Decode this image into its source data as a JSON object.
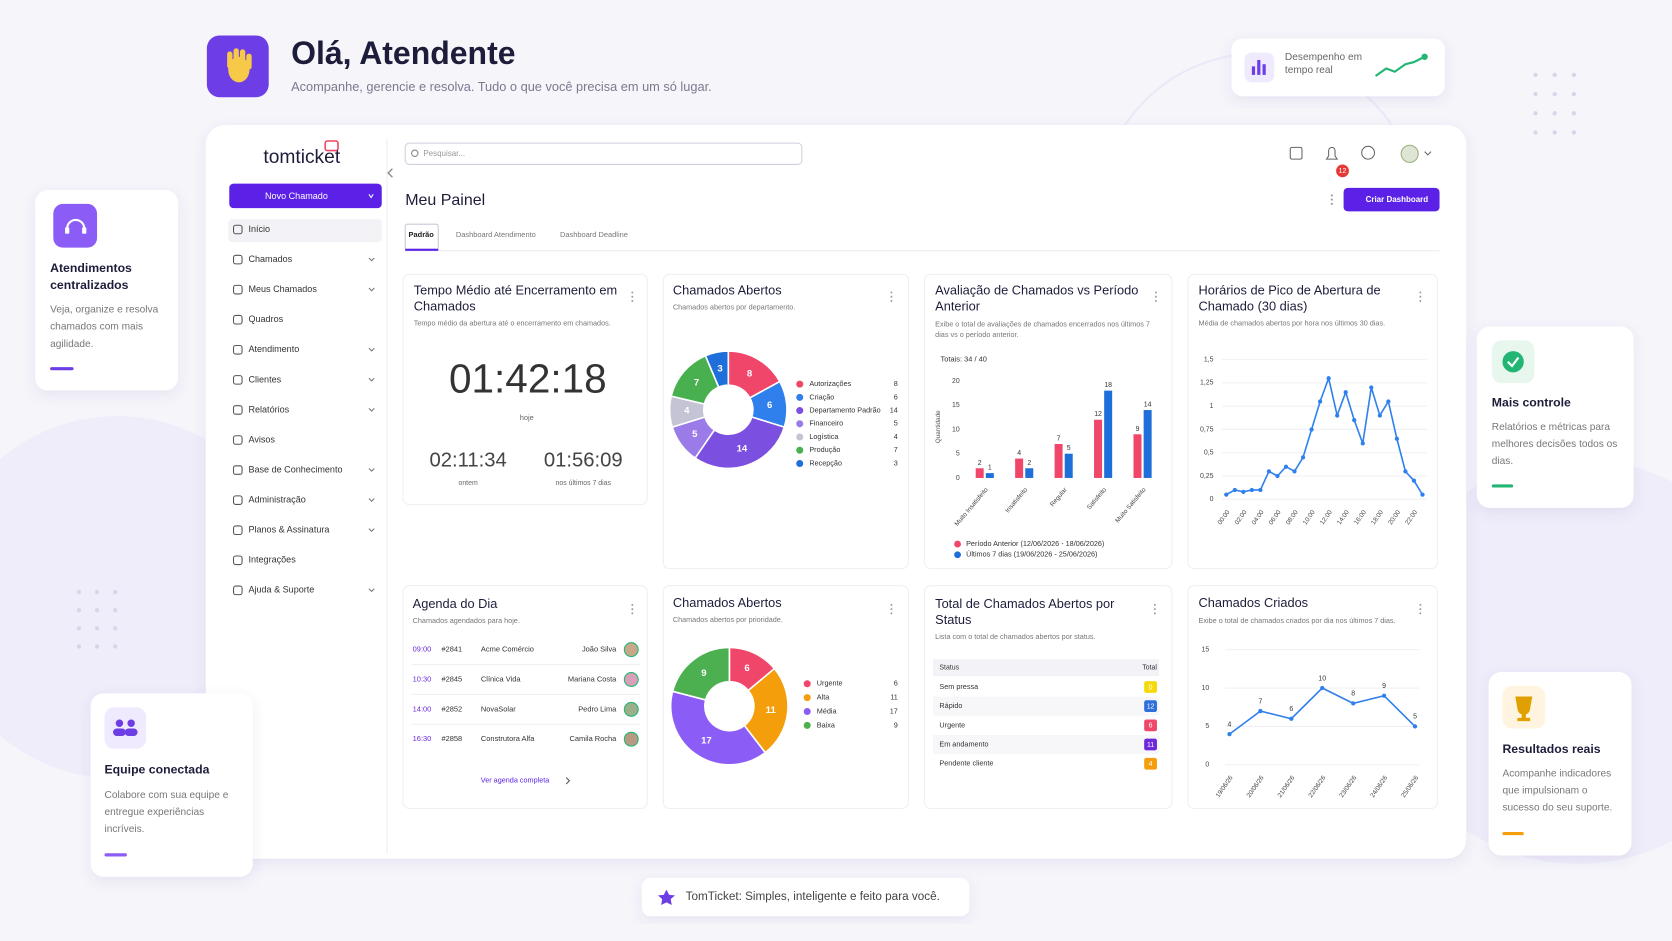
{
  "header": {
    "title": "Olá, Atendente",
    "subtitle": "Acompanhe, gerencie e resolva. Tudo o que você precisa em um só lugar."
  },
  "badge": {
    "text": "Desempenho em tempo real"
  },
  "side_cards": [
    {
      "title": "Atendimentos centralizados",
      "text": "Veja, organize e resolva chamados com mais agilidade."
    },
    {
      "title": "Equipe conectada",
      "text": "Colabore com sua equipe e entregue experiências incríveis."
    },
    {
      "title": "Mais controle",
      "text": "Relatórios e métricas para melhores decisões todos os dias."
    },
    {
      "title": "Resultados reais",
      "text": "Acompanhe indicadores que impulsionam o sucesso do seu suporte."
    }
  ],
  "footer": "TomTicket: Simples, inteligente e feito para você.",
  "app": {
    "logo": "tomticket",
    "new_button": "Novo Chamado",
    "search_placeholder": "Pesquisar...",
    "notifications": 12,
    "page_title": "Meu Painel",
    "create_dashboard": "Criar Dashboard",
    "tabs": [
      "Padrão",
      "Dashboard Atendimento",
      "Dashboard Deadline"
    ],
    "menu": [
      {
        "label": "Início",
        "expandable": false
      },
      {
        "label": "Chamados",
        "expandable": true
      },
      {
        "label": "Meus Chamados",
        "expandable": true
      },
      {
        "label": "Quadros",
        "expandable": false
      },
      {
        "label": "Atendimento",
        "expandable": true
      },
      {
        "label": "Clientes",
        "expandable": true
      },
      {
        "label": "Relatórios",
        "expandable": true
      },
      {
        "label": "Avisos",
        "expandable": false
      },
      {
        "label": "Base de Conhecimento",
        "expandable": true
      },
      {
        "label": "Administração",
        "expandable": true
      },
      {
        "label": "Planos & Assinatura",
        "expandable": true
      },
      {
        "label": "Integrações",
        "expandable": false
      },
      {
        "label": "Ajuda & Suporte",
        "expandable": true
      }
    ]
  },
  "widgets": {
    "avg_time": {
      "title": "Tempo Médio até Encerramento em Chamados",
      "subtitle": "Tempo médio da abertura até o encerramento em chamados.",
      "main": {
        "value": "01:42:18",
        "label": "hoje"
      },
      "others": [
        {
          "value": "02:11:34",
          "label": "ontem"
        },
        {
          "value": "01:56:09",
          "label": "nos últimos 7 dias"
        }
      ]
    },
    "agenda": {
      "title": "Agenda do Dia",
      "subtitle": "Chamados agendados para hoje.",
      "rows": [
        [
          "09:00",
          "#2841",
          "Acme Comércio",
          "João Silva"
        ],
        [
          "10:30",
          "#2845",
          "Clínica Vida",
          "Mariana Costa"
        ],
        [
          "14:00",
          "#2852",
          "NovaSolar",
          "Pedro Lima"
        ],
        [
          "16:30",
          "#2858",
          "Construtora Alfa",
          "Camila Rocha"
        ]
      ],
      "link": "Ver agenda completa"
    },
    "status": {
      "title": "Total de Chamados Abertos por Status",
      "subtitle": "Lista com o total de chamados abertos por status.",
      "headers": [
        "Status",
        "Total"
      ],
      "rows": [
        [
          "Sem pressa",
          0
        ],
        [
          "Rápido",
          12
        ],
        [
          "Urgente",
          6
        ],
        [
          "Em andamento",
          11
        ],
        [
          "Pendente cliente",
          4
        ]
      ],
      "colors": [
        "#f5d90a",
        "#2f6fdc",
        "#f0466a",
        "#6d28d9",
        "#f59e0b"
      ]
    }
  },
  "chart_data": [
    {
      "type": "pie",
      "title": "Chamados Abertos",
      "subtitle": "Chamados abertos por departamento.",
      "categories": [
        "Autorizações",
        "Criação",
        "Departamento Padrão",
        "Financeiro",
        "Logística",
        "Produção",
        "Recepção"
      ],
      "values": [
        8,
        6,
        14,
        5,
        4,
        7,
        3
      ],
      "colors": [
        "#f0466a",
        "#2f80ed",
        "#7b4fe0",
        "#9b7be8",
        "#c4c4d4",
        "#49b04f",
        "#1e6fd9"
      ],
      "data_labels": true,
      "legend": "right"
    },
    {
      "type": "bar",
      "title": "Avaliação de Chamados vs Período Anterior",
      "subtitle": "Exibe o total de avaliações de chamados encerrados nos últimos 7 dias vs o período anterior.",
      "annotation": "Totais: 34 / 40",
      "ylabel": "Quantidade",
      "categories": [
        "Muito Insatisfeito",
        "Insatisfeito",
        "Regular",
        "Satisfeito",
        "Muito Satisfeito"
      ],
      "series": [
        {
          "name": "Período Anterior (12/06/2026 - 18/06/2026)",
          "color": "#f0466a",
          "values": [
            2,
            4,
            7,
            12,
            9
          ]
        },
        {
          "name": "Últimos 7 dias (19/06/2026 - 25/06/2026)",
          "color": "#1e6fd9",
          "values": [
            1,
            2,
            5,
            18,
            14
          ]
        }
      ],
      "ylim": [
        0,
        20
      ],
      "yticks": [
        0,
        5,
        10,
        15,
        20
      ],
      "grid": false,
      "data_labels": true,
      "legend": "bottom"
    },
    {
      "type": "line",
      "title": "Horários de Pico de Abertura de Chamado (30 dias)",
      "subtitle": "Média de chamados abertos por hora nos últimos 30 dias.",
      "categories": [
        "00:00",
        null,
        "02:00",
        null,
        "04:00",
        null,
        "06:00",
        null,
        "08:00",
        null,
        "10:00",
        null,
        "12:00",
        null,
        "14:00",
        null,
        "16:00",
        null,
        "18:00",
        null,
        "20:00",
        null,
        "22:00",
        null
      ],
      "values": [
        0.05,
        0.1,
        0.08,
        0.1,
        0.1,
        0.3,
        0.25,
        0.35,
        0.3,
        0.45,
        0.75,
        1.05,
        1.3,
        0.9,
        1.15,
        0.85,
        0.6,
        1.2,
        0.9,
        1.05,
        0.65,
        0.3,
        0.2,
        0.05
      ],
      "color": "#2f80ed",
      "ylim": [
        0,
        1.5
      ],
      "yticks": [
        0,
        {
          "value": 0.25,
          "label": "0,25"
        },
        {
          "value": 0.5,
          "label": "0,5"
        },
        {
          "value": 0.75,
          "label": "0,75"
        },
        1,
        {
          "value": 1.25,
          "label": "1,25"
        },
        {
          "value": 1.5,
          "label": "1,5"
        }
      ],
      "grid": true,
      "data_labels": false
    },
    {
      "type": "pie",
      "title": "Chamados Abertos",
      "subtitle": "Chamados abertos por prioridade.",
      "categories": [
        "Urgente",
        "Alta",
        "Média",
        "Baixa"
      ],
      "values": [
        6,
        11,
        17,
        9
      ],
      "colors": [
        "#f0466a",
        "#f59e0b",
        "#8b5cf6",
        "#4caf50"
      ],
      "data_labels": true,
      "legend": "right"
    },
    {
      "type": "line",
      "title": "Chamados Criados",
      "subtitle": "Exibe o total de chamados criados por dia nos últimos 7 dias.",
      "categories": [
        "19/06/26",
        "20/06/26",
        "21/06/26",
        "22/06/26",
        "23/06/26",
        "24/06/26",
        "25/06/26"
      ],
      "values": [
        4,
        7,
        6,
        10,
        8,
        9,
        5
      ],
      "color": "#2f80ed",
      "ylim": [
        0,
        15
      ],
      "yticks": [
        0,
        5,
        10,
        15
      ],
      "grid": true,
      "data_labels": true
    }
  ]
}
